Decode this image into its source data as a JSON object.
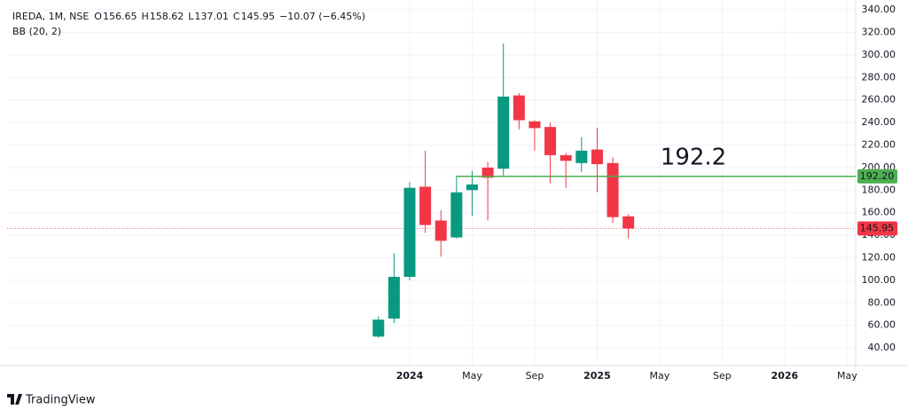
{
  "chart_data": {
    "type": "candlestick",
    "title": "IREDA, 1M, NSE",
    "header": [
      {
        "label": "O",
        "value": "156.65"
      },
      {
        "label": "H",
        "value": "158.62"
      },
      {
        "label": "L",
        "value": "137.01"
      },
      {
        "label": "C",
        "value": "145.95"
      }
    ],
    "change": "−10.07 (−6.45%)",
    "indicator": "BB (20, 2)",
    "x": [
      "2023-11",
      "2023-12",
      "2024-01",
      "2024-02",
      "2024-03",
      "2024-04",
      "2024-05",
      "2024-06",
      "2024-07",
      "2024-08",
      "2024-09",
      "2024-10",
      "2024-11",
      "2024-12",
      "2025-01",
      "2025-02",
      "2025-03"
    ],
    "open": [
      50,
      66,
      103,
      183,
      153,
      138,
      180,
      200,
      199,
      264,
      241,
      236,
      211,
      204,
      216,
      204,
      156.65
    ],
    "high": [
      68,
      124,
      187,
      215,
      162,
      193,
      197,
      205,
      310,
      266,
      242,
      240,
      213,
      227,
      235,
      209,
      158.62
    ],
    "low": [
      49,
      62,
      100,
      142,
      121,
      137,
      157,
      153,
      193,
      234,
      215,
      186,
      182,
      196,
      178,
      151,
      137.01
    ],
    "close": [
      65,
      103,
      182,
      149,
      135,
      178,
      185,
      191,
      263,
      242,
      235,
      211,
      206,
      215,
      203,
      156,
      145.95
    ],
    "up_color": "#089981",
    "down_color": "#f23645",
    "ylim": [
      24.3,
      342.4
    ],
    "yticks": [
      {
        "value": 40,
        "label": "40.00"
      },
      {
        "value": 60,
        "label": "60.00"
      },
      {
        "value": 80,
        "label": "80.00"
      },
      {
        "value": 100,
        "label": "100.00"
      },
      {
        "value": 120,
        "label": "120.00"
      },
      {
        "value": 140,
        "label": "140.00"
      },
      {
        "value": 160,
        "label": "160.00"
      },
      {
        "value": 180,
        "label": "180.00"
      },
      {
        "value": 200,
        "label": "200.00"
      },
      {
        "value": 220,
        "label": "220.00"
      },
      {
        "value": 240,
        "label": "240.00"
      },
      {
        "value": 260,
        "label": "260.00"
      },
      {
        "value": 280,
        "label": "280.00"
      },
      {
        "value": 300,
        "label": "300.00"
      },
      {
        "value": 320,
        "label": "320.00"
      },
      {
        "value": 340,
        "label": "340.00"
      }
    ],
    "xticks": [
      {
        "value": "2024-01",
        "label": "2024"
      },
      {
        "value": "2024-05",
        "label": "May"
      },
      {
        "value": "2024-09",
        "label": "Sep"
      },
      {
        "value": "2025-01",
        "label": "2025"
      },
      {
        "value": "2025-05",
        "label": "May"
      },
      {
        "value": "2025-09",
        "label": "Sep"
      },
      {
        "value": "2026-01",
        "label": "2026"
      },
      {
        "value": "2026-05",
        "label": "May"
      }
    ],
    "grid": true,
    "hline": {
      "value": 192.2,
      "start": "2024-04",
      "color": "#4caf50",
      "label": "192.2",
      "price_label": "192.20"
    },
    "last_price": {
      "value": 145.95,
      "label": "145.95"
    },
    "brand": "TradingView"
  }
}
